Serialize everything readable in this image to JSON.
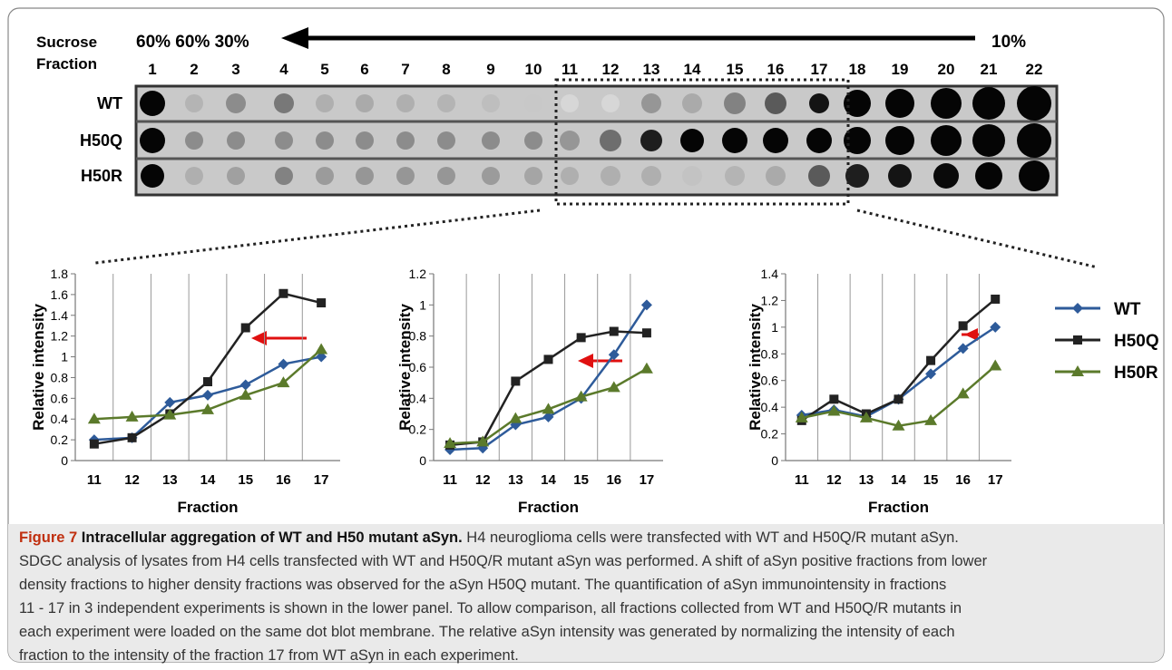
{
  "blot": {
    "label_top": "Sucrose",
    "label_bottom": "Fraction",
    "left_percent": "60% 60% 30%",
    "right_percent": "10%",
    "fractions": [
      "1",
      "2",
      "3",
      "4",
      "5",
      "6",
      "7",
      "8",
      "9",
      "10",
      "11",
      "12",
      "13",
      "14",
      "15",
      "16",
      "17",
      "18",
      "19",
      "20",
      "21",
      "22"
    ],
    "rows": [
      "WT",
      "H50Q",
      "H50R"
    ]
  },
  "chart_data": [
    {
      "type": "line",
      "ylabel": "Relative intensity",
      "xlabel": "Fraction",
      "categories": [
        "11",
        "12",
        "13",
        "14",
        "15",
        "16",
        "17"
      ],
      "ylim": [
        0,
        1.8
      ],
      "yticks": [
        0,
        0.2,
        0.4,
        0.6,
        0.8,
        1,
        1.2,
        1.4,
        1.6,
        1.8
      ],
      "series": [
        {
          "name": "WT",
          "color": "#2e5b9a",
          "marker": "diamond",
          "values": [
            0.2,
            0.22,
            0.56,
            0.63,
            0.73,
            0.93,
            1.0
          ]
        },
        {
          "name": "H50Q",
          "color": "#222222",
          "marker": "square",
          "values": [
            0.16,
            0.22,
            0.45,
            0.76,
            1.28,
            1.61,
            1.52
          ]
        },
        {
          "name": "H50R",
          "color": "#5b7a2b",
          "marker": "triangle",
          "values": [
            0.4,
            0.42,
            0.44,
            0.49,
            0.63,
            0.75,
            1.07
          ]
        }
      ]
    },
    {
      "type": "line",
      "ylabel": "Relative intensity",
      "xlabel": "Fraction",
      "categories": [
        "11",
        "12",
        "13",
        "14",
        "15",
        "16",
        "17"
      ],
      "ylim": [
        0,
        1.2
      ],
      "yticks": [
        0,
        0.2,
        0.4,
        0.6,
        0.8,
        1,
        1.2
      ],
      "series": [
        {
          "name": "WT",
          "color": "#2e5b9a",
          "marker": "diamond",
          "values": [
            0.07,
            0.08,
            0.23,
            0.28,
            0.4,
            0.68,
            1.0
          ]
        },
        {
          "name": "H50Q",
          "color": "#222222",
          "marker": "square",
          "values": [
            0.1,
            0.12,
            0.51,
            0.65,
            0.79,
            0.83,
            0.82
          ]
        },
        {
          "name": "H50R",
          "color": "#5b7a2b",
          "marker": "triangle",
          "values": [
            0.11,
            0.12,
            0.27,
            0.33,
            0.41,
            0.47,
            0.59
          ]
        }
      ]
    },
    {
      "type": "line",
      "ylabel": "Relative intensity",
      "xlabel": "Fraction",
      "categories": [
        "11",
        "12",
        "13",
        "14",
        "15",
        "16",
        "17"
      ],
      "ylim": [
        0,
        1.4
      ],
      "yticks": [
        0,
        0.2,
        0.4,
        0.6,
        0.8,
        1,
        1.2,
        1.4
      ],
      "legend": "right",
      "series": [
        {
          "name": "WT",
          "color": "#2e5b9a",
          "marker": "diamond",
          "values": [
            0.34,
            0.38,
            0.33,
            0.46,
            0.65,
            0.84,
            1.0
          ]
        },
        {
          "name": "H50Q",
          "color": "#222222",
          "marker": "square",
          "values": [
            0.3,
            0.46,
            0.35,
            0.46,
            0.75,
            1.01,
            1.21
          ]
        },
        {
          "name": "H50R",
          "color": "#5b7a2b",
          "marker": "triangle",
          "values": [
            0.32,
            0.37,
            0.32,
            0.26,
            0.3,
            0.5,
            0.71
          ]
        }
      ]
    }
  ],
  "caption": {
    "label": "Figure 7",
    "title": "Intracellular aggregation of WT and H50 mutant aSyn.",
    "lines": [
      "H4 neuroglioma cells were transfected with WT and H50Q/R mutant aSyn.",
      "SDGC analysis of lysates from H4 cells transfected with WT and H50Q/R mutant aSyn was performed. A shift of aSyn positive fractions from lower",
      "density fractions to higher density fractions was observed for the aSyn H50Q mutant. The quantification of aSyn immunointensity in fractions",
      "11 - 17 in 3 independent experiments is shown in the lower panel. To allow comparison, all fractions collected from WT and H50Q/R mutants in",
      "each experiment were loaded on the same dot blot membrane. The relative aSyn intensity was generated by normalizing the intensity of each",
      "fraction to the intensity of the fraction 17 from WT aSyn in each experiment."
    ]
  }
}
